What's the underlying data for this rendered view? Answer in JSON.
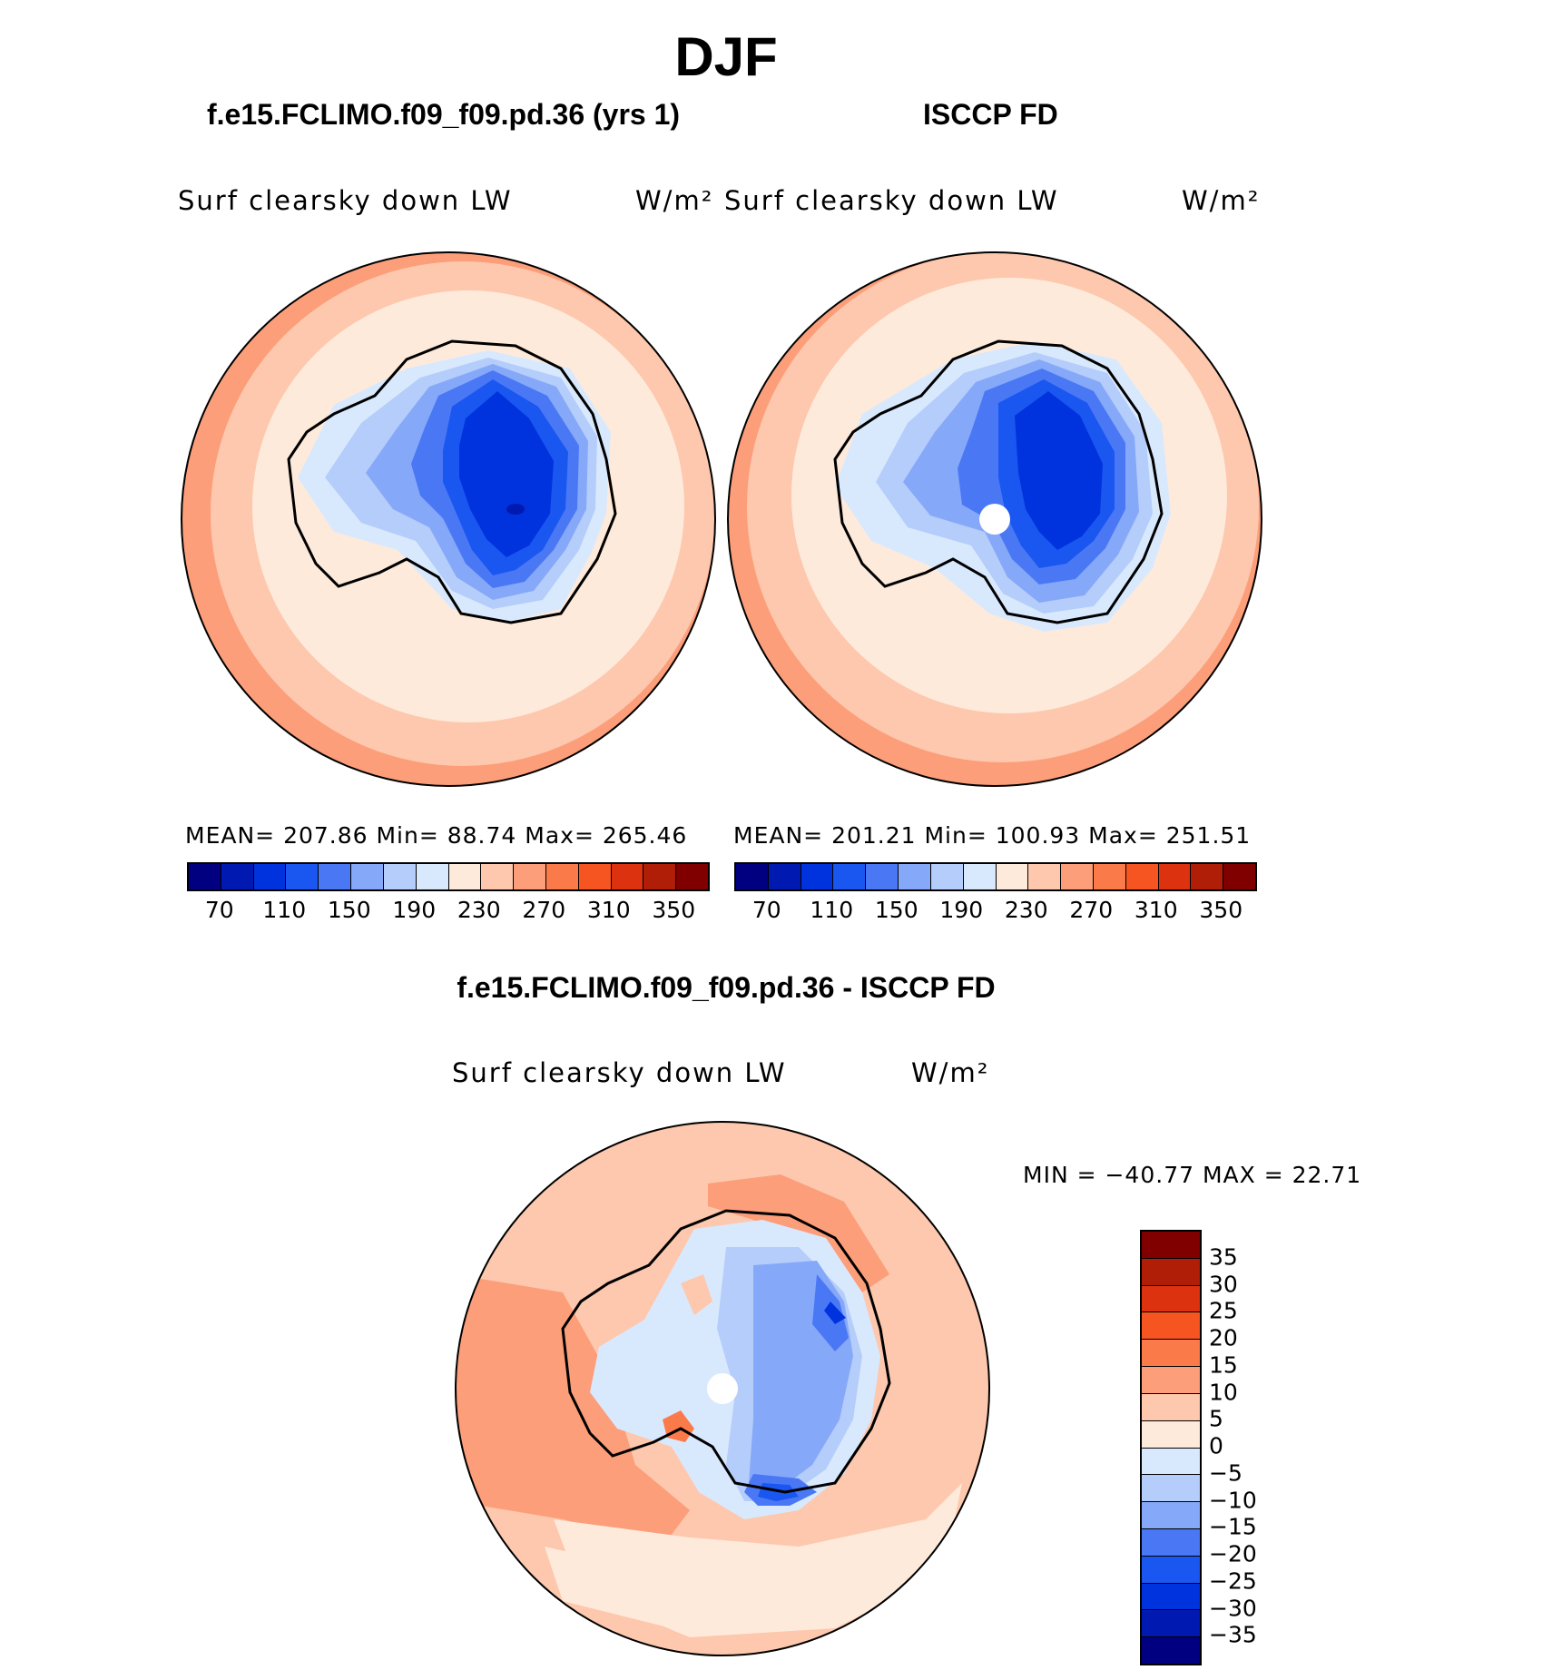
{
  "title": "DJF",
  "panels": {
    "model": {
      "title": "f.e15.FCLIMO.f09_f09.pd.36 (yrs 1)",
      "variable": "Surf clearsky down LW",
      "units": "W/m²",
      "stats": "MEAN= 207.86   Min=  88.74   Max= 265.46"
    },
    "obs": {
      "title": "ISCCP FD",
      "variable": "Surf clearsky down LW",
      "units": "W/m²",
      "stats": "MEAN= 201.21   Min= 100.93   Max= 251.51"
    },
    "diff": {
      "title": "f.e15.FCLIMO.f09_f09.pd.36 - ISCCP FD",
      "variable": "Surf clearsky down LW",
      "units": "W/m²",
      "stats": "MIN = −40.77 MAX =   22.71"
    }
  },
  "colorbar_abs": {
    "ticks": [
      "70",
      "110",
      "150",
      "190",
      "230",
      "270",
      "310",
      "350"
    ],
    "colors": [
      "#000080",
      "#0019b0",
      "#0033dd",
      "#1a56f0",
      "#4a78f5",
      "#86a8f8",
      "#b5cdfb",
      "#d9e9fd",
      "#feeadb",
      "#fdc8ad",
      "#fc9e7a",
      "#fb7a4a",
      "#f65420",
      "#dd3210",
      "#b01e08",
      "#800000"
    ]
  },
  "colorbar_diff": {
    "ticks": [
      "35",
      "30",
      "25",
      "20",
      "15",
      "10",
      "5",
      "0",
      "−5",
      "−10",
      "−15",
      "−20",
      "−25",
      "−30",
      "−35"
    ],
    "colors": [
      "#800000",
      "#b01e08",
      "#dd3210",
      "#f65420",
      "#fb7a4a",
      "#fc9e7a",
      "#fdc8ad",
      "#feeadb",
      "#d9e9fd",
      "#b5cdfb",
      "#86a8f8",
      "#4a78f5",
      "#1a56f0",
      "#0033dd",
      "#0019b0",
      "#000080"
    ]
  },
  "chart_data": [
    {
      "type": "heatmap",
      "title": "f.e15.FCLIMO.f09_f09.pd.36 (yrs 1)",
      "variable": "Surf clearsky down LW",
      "units": "W/m²",
      "projection": "south-polar-stereographic",
      "levels": [
        70,
        80,
        90,
        100,
        110,
        120,
        130,
        140,
        150,
        160,
        170,
        180,
        190,
        200,
        210,
        220,
        230,
        240,
        250,
        260,
        270,
        280,
        290,
        300,
        310,
        320,
        330,
        340,
        350
      ],
      "mean": 207.86,
      "min": 88.74,
      "max": 265.46
    },
    {
      "type": "heatmap",
      "title": "ISCCP FD",
      "variable": "Surf clearsky down LW",
      "units": "W/m²",
      "projection": "south-polar-stereographic",
      "mean": 201.21,
      "min": 100.93,
      "max": 251.51
    },
    {
      "type": "heatmap",
      "title": "f.e15.FCLIMO.f09_f09.pd.36 - ISCCP FD",
      "variable": "Surf clearsky down LW",
      "units": "W/m²",
      "projection": "south-polar-stereographic",
      "levels": [
        -35,
        -30,
        -25,
        -20,
        -15,
        -10,
        -5,
        0,
        5,
        10,
        15,
        20,
        25,
        30,
        35
      ],
      "min": -40.77,
      "max": 22.71
    }
  ]
}
